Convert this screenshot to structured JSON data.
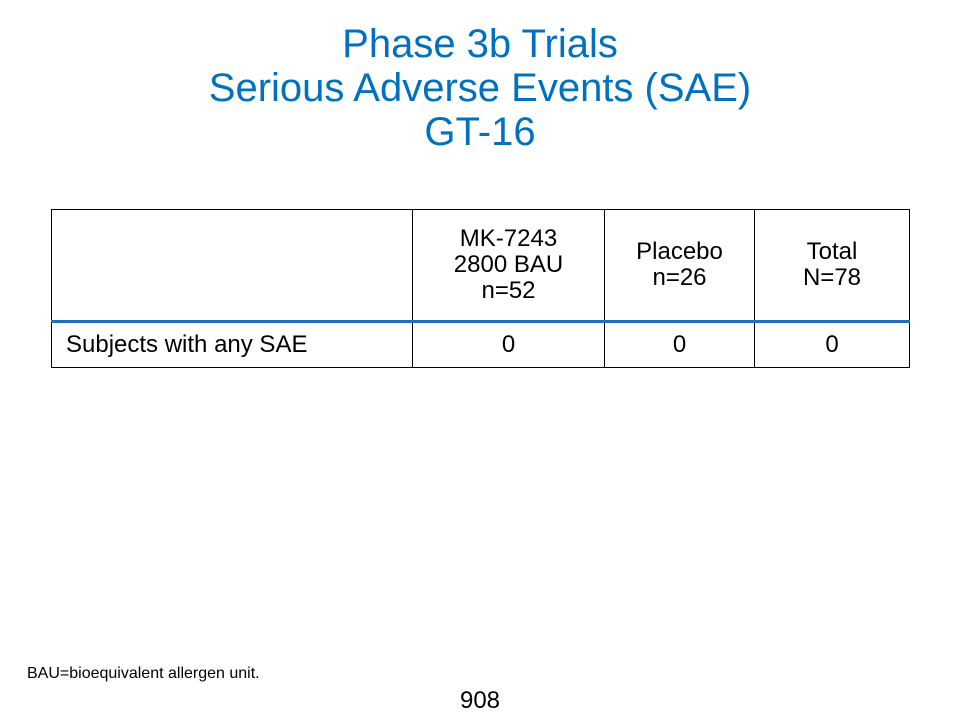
{
  "title": {
    "line1": "Phase 3b Trials",
    "line2": "Serious Adverse Events (SAE)",
    "line3": "GT-16"
  },
  "colors": {
    "title": "#0070c0",
    "header_rule": "#1f6fbf"
  },
  "table": {
    "header": {
      "corner": "",
      "columns": [
        {
          "lines": [
            "MK-7243",
            "2800 BAU",
            "n=52"
          ]
        },
        {
          "lines": [
            "Placebo",
            "n=26"
          ]
        },
        {
          "lines": [
            "Total",
            "N=78"
          ]
        }
      ]
    },
    "rows": [
      {
        "label": "Subjects with any SAE",
        "values": [
          "0",
          "0",
          "0"
        ]
      }
    ]
  },
  "footnote": "BAU=bioequivalent allergen unit.",
  "page_number": "908"
}
